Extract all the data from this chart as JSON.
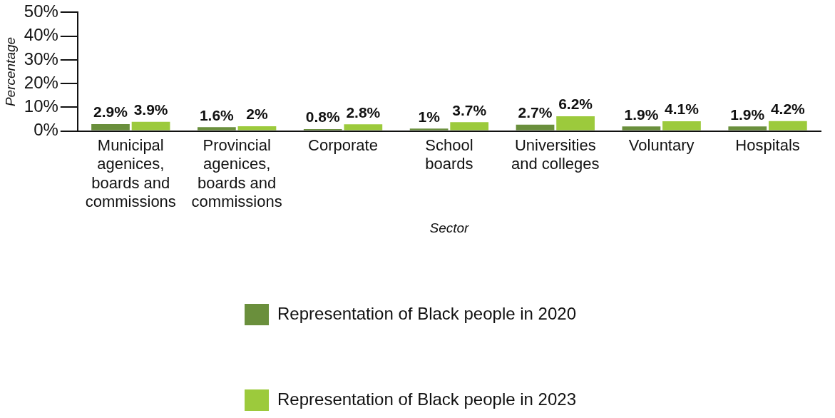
{
  "chart_data": {
    "type": "bar",
    "xlabel": "Sector",
    "ylabel": "Percentage",
    "categories": [
      "Municipal agenices, boards and commissions",
      "Provincial agenices, boards and commissions",
      "Corporate",
      "School boards",
      "Universities and colleges",
      "Voluntary",
      "Hospitals"
    ],
    "series": [
      {
        "name": "Representation of Black people in 2020",
        "color": "#6a8f3c",
        "values": [
          2.9,
          1.6,
          0.8,
          1,
          2.7,
          1.9,
          1.9
        ],
        "value_labels": [
          "2.9%",
          "1.6%",
          "0.8%",
          "1%",
          "2.7%",
          "1.9%",
          "1.9%"
        ]
      },
      {
        "name": "Representation of Black people in 2023",
        "color": "#9cca3c",
        "values": [
          3.9,
          2,
          2.8,
          3.7,
          6.2,
          4.1,
          4.2
        ],
        "value_labels": [
          "3.9%",
          "2%",
          "2.8%",
          "3.7%",
          "6.2%",
          "4.1%",
          "4.2%"
        ]
      }
    ],
    "ylim": [
      0,
      50
    ],
    "yticks": [
      {
        "value": 0,
        "label": "0%"
      },
      {
        "value": 10,
        "label": "10%"
      },
      {
        "value": 20,
        "label": "20%"
      },
      {
        "value": 30,
        "label": "30%"
      },
      {
        "value": 40,
        "label": "40%"
      },
      {
        "value": 50,
        "label": "50%"
      }
    ],
    "grid": false,
    "legend": "bottom"
  }
}
